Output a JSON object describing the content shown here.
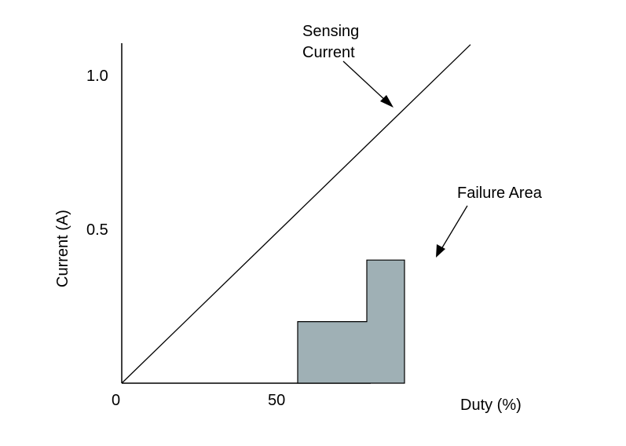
{
  "chart_data": {
    "type": "line",
    "title": "",
    "xlabel": "Duty (%)",
    "ylabel": "Current (A)",
    "xlim": [
      0,
      111
    ],
    "ylim": [
      0,
      1.1
    ],
    "x_ticks": [
      {
        "value": 0,
        "label": "0"
      },
      {
        "value": 50,
        "label": "50"
      }
    ],
    "y_ticks": [
      {
        "value": 0.5,
        "label": "0.5"
      },
      {
        "value": 1.0,
        "label": "1.0"
      }
    ],
    "grid": false,
    "series": [
      {
        "name": "Sensing Current",
        "x": [
          0,
          111
        ],
        "y": [
          0,
          1.1
        ]
      }
    ],
    "regions": [
      {
        "name": "Failure Area",
        "fill": "#9fb0b5",
        "polygon": [
          [
            56,
            0
          ],
          [
            90,
            0
          ],
          [
            90,
            0.4
          ],
          [
            78,
            0.4
          ],
          [
            78,
            0.2
          ],
          [
            56,
            0.2
          ]
        ]
      }
    ],
    "annotations": [
      {
        "text": "Sensing",
        "points_to": "Sensing Current"
      },
      {
        "text": "Current",
        "points_to": "Sensing Current"
      },
      {
        "text": "Failure Area",
        "points_to": "Failure Area"
      }
    ]
  }
}
